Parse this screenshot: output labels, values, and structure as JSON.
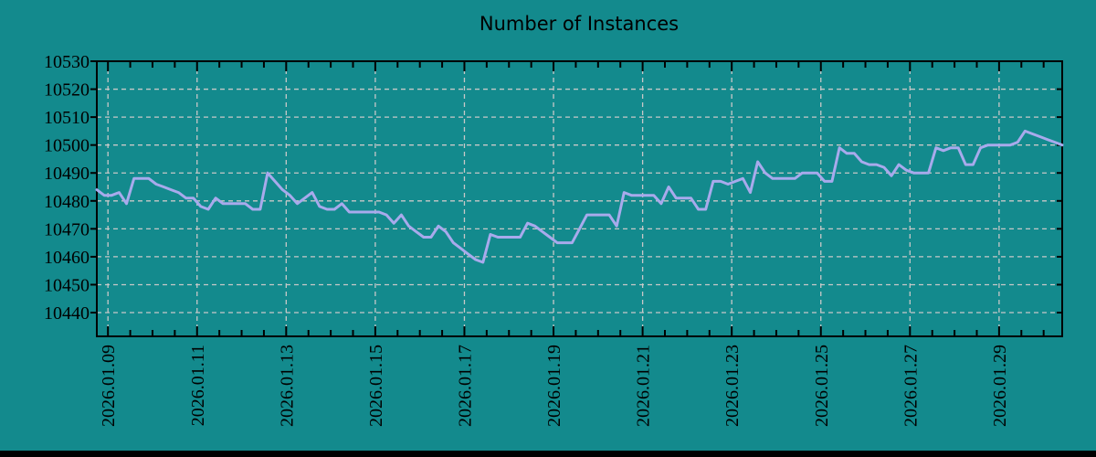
{
  "window": {
    "background": "#138a8d",
    "bottom_bar_color": "#000000",
    "text_color": "#000000"
  },
  "chart_data": {
    "type": "line",
    "title": "Number of Instances",
    "grid": {
      "show": true,
      "color": "#c8c8c8",
      "dash": "5 4"
    },
    "frame_color": "#000000",
    "x_axis": {
      "tick_labels": [
        "2026.01.09",
        "2026.01.11",
        "2026.01.13",
        "2026.01.15",
        "2026.01.17",
        "2026.01.19",
        "2026.01.21",
        "2026.01.23",
        "2026.01.25",
        "2026.01.27",
        "2026.01.29"
      ],
      "tick_hours": [
        0,
        48,
        96,
        144,
        192,
        240,
        288,
        336,
        384,
        432,
        480
      ],
      "minor_tick_step_hours": 12,
      "range_hours": [
        -6,
        514
      ],
      "start_time": "2026-01-08 18:00",
      "step_hours": 4
    },
    "y_axis": {
      "tick_labels": [
        "10440",
        "10450",
        "10460",
        "10470",
        "10480",
        "10490",
        "10500",
        "10510",
        "10520",
        "10530"
      ],
      "tick_values": [
        10440,
        10450,
        10460,
        10470,
        10480,
        10490,
        10500,
        10510,
        10520,
        10530
      ],
      "range": [
        10431.5,
        10530
      ]
    },
    "series": [
      {
        "name": "instances",
        "color": "#a8aaec",
        "width": 3,
        "values": [
          10484,
          10482,
          10482,
          10483,
          10479,
          10488,
          10488,
          10488,
          10486,
          10485,
          10484,
          10483,
          10481,
          10481,
          10478,
          10477,
          10481,
          10479,
          10479,
          10479,
          10479,
          10477,
          10477,
          10490,
          10487,
          10484,
          10482,
          10479,
          10481,
          10483,
          10478,
          10477,
          10477,
          10479,
          10476,
          10476,
          10476,
          10476,
          10476,
          10475,
          10472,
          10475,
          10471,
          10469,
          10467,
          10467,
          10471,
          10469,
          10465,
          10463,
          10461,
          10459,
          10458,
          10468,
          10467,
          10467,
          10467,
          10467,
          10472,
          10471,
          10469,
          10467,
          10465,
          10465,
          10465,
          10470,
          10475,
          10475,
          10475,
          10475,
          10471,
          10483,
          10482,
          10482,
          10482,
          10482,
          10479,
          10485,
          10481,
          10481,
          10481,
          10477,
          10477,
          10487,
          10487,
          10486,
          10487,
          10488,
          10483,
          10494,
          10490,
          10488,
          10488,
          10488,
          10488,
          10490,
          10490,
          10490,
          10487,
          10487,
          10499,
          10497,
          10497,
          10494,
          10493,
          10493,
          10492,
          10489,
          10493,
          10491,
          10490,
          10490,
          10490,
          10499,
          10498,
          10499,
          10499,
          10493,
          10493,
          10499,
          10500,
          10500,
          10500,
          10500,
          10501,
          10505,
          10504,
          10503,
          10502,
          10501,
          10500
        ]
      }
    ]
  }
}
